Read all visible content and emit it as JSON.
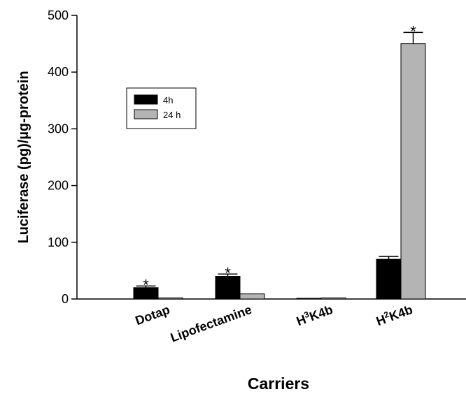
{
  "chart_data": {
    "type": "bar",
    "xlabel": "Carriers",
    "ylabel": "Luciferase (pg)/µg-protein",
    "ylim": [
      0,
      500
    ],
    "yticks": [
      "0",
      "100",
      "200",
      "300",
      "400",
      "500"
    ],
    "categories": [
      {
        "base": "Dotap",
        "sup": "",
        "rest": ""
      },
      {
        "base": "Lipofectamine",
        "sup": "",
        "rest": ""
      },
      {
        "base": "H",
        "sup": "3",
        "rest": "K4b"
      },
      {
        "base": "H",
        "sup": "2",
        "rest": "K4b"
      }
    ],
    "series": [
      {
        "name": "4h",
        "color": "#000000",
        "values": [
          20,
          40,
          1,
          70
        ],
        "errors": [
          3,
          4,
          0,
          5
        ],
        "significant": [
          true,
          true,
          false,
          false
        ]
      },
      {
        "name": "24 h",
        "color": "#b4b4b4",
        "values": [
          2,
          9,
          2,
          450
        ],
        "errors": [
          0,
          0,
          0,
          20
        ],
        "significant": [
          false,
          false,
          false,
          true
        ]
      }
    ],
    "significance_marker": "*",
    "legend_position": "upper-left",
    "grid": false
  }
}
